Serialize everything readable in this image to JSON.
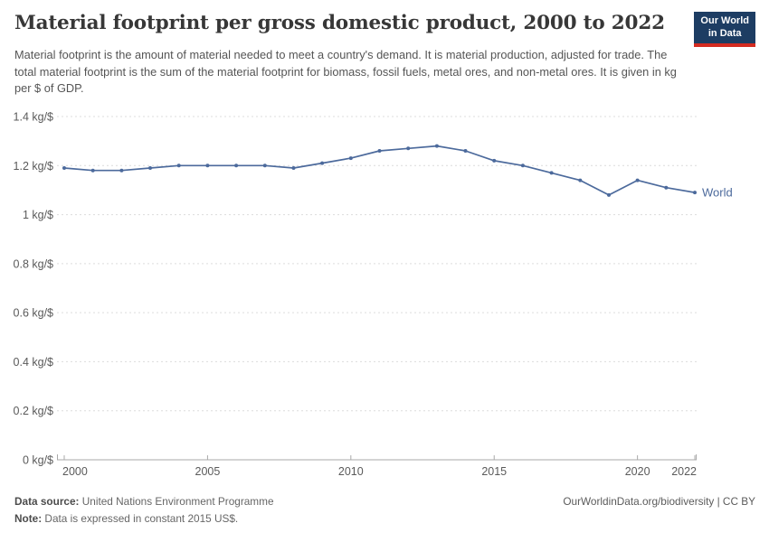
{
  "header": {
    "title": "Material footprint per gross domestic product, 2000 to 2022",
    "subtitle": "Material footprint is the amount of material needed to meet a country's demand. It is material production, adjusted for trade. The total material footprint is the sum of the material footprint for biomass, fossil fuels, metal ores, and non-metal ores. It is given in kg per $ of GDP.",
    "logo": {
      "line1": "Our World",
      "line2": "in Data",
      "bg_color": "#1d3d63",
      "stripe_color": "#d42b21"
    }
  },
  "chart_data": {
    "type": "line",
    "title": "Material footprint per gross domestic product, 2000 to 2022",
    "xlabel": "",
    "ylabel": "kg per $ of GDP",
    "xlim": [
      2000,
      2022
    ],
    "ylim": [
      0,
      1.4
    ],
    "grid": "horizontal-dashed",
    "legend_position": "end-of-line-label",
    "x_ticks": [
      2000,
      2005,
      2010,
      2015,
      2020,
      2022
    ],
    "y_ticks": [
      0,
      0.2,
      0.4,
      0.6,
      0.8,
      1,
      1.2,
      1.4
    ],
    "y_tick_suffix": " kg/$",
    "x": [
      2000,
      2001,
      2002,
      2003,
      2004,
      2005,
      2006,
      2007,
      2008,
      2009,
      2010,
      2011,
      2012,
      2013,
      2014,
      2015,
      2016,
      2017,
      2018,
      2019,
      2020,
      2021,
      2022
    ],
    "series": [
      {
        "name": "World",
        "color": "#4C6A9C",
        "values": [
          1.19,
          1.18,
          1.18,
          1.19,
          1.2,
          1.2,
          1.2,
          1.2,
          1.19,
          1.21,
          1.23,
          1.26,
          1.27,
          1.28,
          1.26,
          1.22,
          1.2,
          1.17,
          1.14,
          1.08,
          1.14,
          1.11,
          1.09
        ]
      }
    ],
    "axis_color": "#a9a9a9",
    "gridline_color": "#dcdcdc",
    "tick_label_color": "#5a5a5a"
  },
  "footer": {
    "source_label": "Data source:",
    "source_text": " United Nations Environment Programme",
    "note_label": "Note:",
    "note_text": " Data is expressed in constant 2015 US$.",
    "right_text": "OurWorldinData.org/biodiversity | CC BY"
  }
}
